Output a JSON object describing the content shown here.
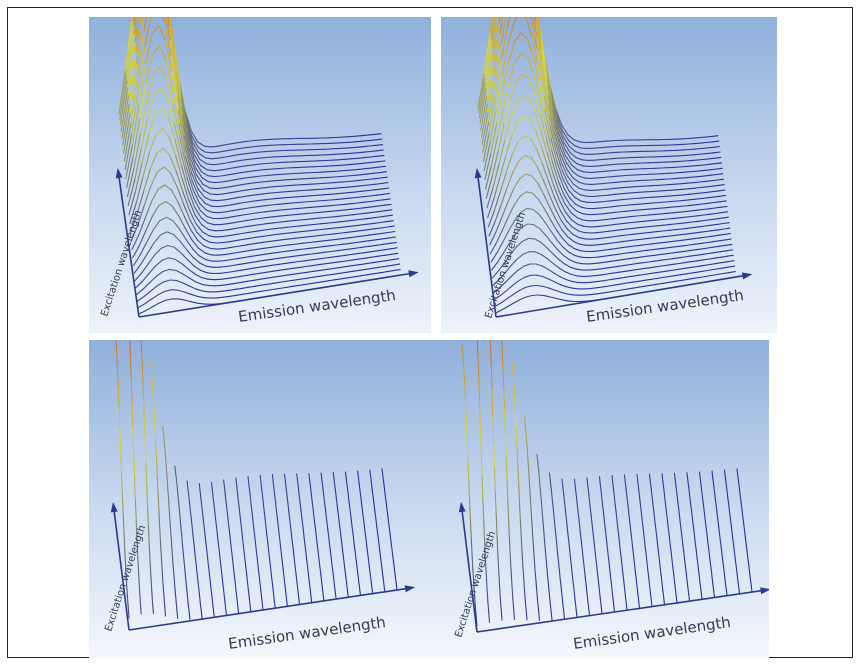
{
  "chart_data": [
    {
      "type": "surface",
      "xlabel": "Emission wavelength",
      "ylabel": "Excitation wavelength",
      "surface": "peaked ridge rising toward back-left, peak near low emission / high excitation",
      "colors": {
        "low": "#2b2f9e",
        "mid": "#d8d838",
        "high": "#c8402a"
      },
      "grid": "wireframe",
      "background": "blue-gradient"
    },
    {
      "type": "surface",
      "xlabel": "Emission wavelength",
      "ylabel": "Excitation wavelength",
      "surface": "broader peaked ridge rising toward back-left, higher peak with red top",
      "colors": {
        "low": "#2b2f9e",
        "mid": "#d8d838",
        "high": "#c8402a"
      },
      "grid": "wireframe",
      "background": "blue-gradient"
    },
    {
      "type": "surface",
      "xlabel": "Emission wavelength",
      "ylabel": "Excitation wavelength",
      "surface": "spiky ridge rising toward back-left, orthogonal slice lines",
      "colors": {
        "low": "#2b2f9e",
        "mid": "#d8d838",
        "high": "#c8402a"
      },
      "grid": "wireframe",
      "background": "blue-gradient"
    },
    {
      "type": "surface",
      "xlabel": "Emission wavelength",
      "ylabel": "Excitation wavelength",
      "surface": "spiky ridge rising toward back-left, denser red peaks",
      "colors": {
        "low": "#2b2f9e",
        "mid": "#d8d838",
        "high": "#c8402a"
      },
      "grid": "wireframe",
      "background": "blue-gradient"
    }
  ]
}
